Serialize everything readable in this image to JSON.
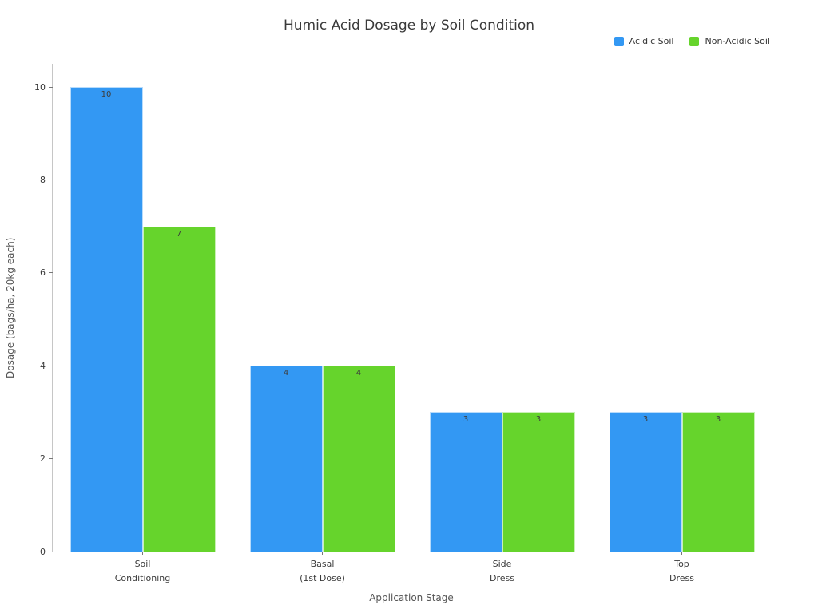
{
  "title": "Humic Acid Dosage by Soil Condition",
  "chart_data": {
    "type": "bar",
    "title": "Humic Acid Dosage by Soil Condition",
    "categories": [
      "Soil\nConditioning",
      "Basal\n(1st Dose)",
      "Side\nDress",
      "Top\nDress"
    ],
    "series": [
      {
        "name": "Acidic Soil",
        "color": "#3398f3",
        "values": [
          10,
          4,
          3,
          3
        ]
      },
      {
        "name": "Non-Acidic Soil",
        "color": "#66d42c",
        "values": [
          7,
          4,
          3,
          3
        ]
      }
    ],
    "xlabel": "Application Stage",
    "ylabel": "Dosage (bags/ha, 20kg each)",
    "yticks": [
      0,
      2,
      4,
      6,
      8,
      10
    ],
    "ylim": [
      0,
      10.5
    ],
    "bar_value_labels": true,
    "legend_position": "top-right",
    "grid": false
  },
  "colors": {
    "background": "#ffffff",
    "spine": "#c6c6c6",
    "tick": "#777777",
    "tick_label": "#3a3a3a",
    "axis_title": "#555555",
    "title": "#3a3a3a",
    "bar_value_label": "#3d3d3d"
  }
}
